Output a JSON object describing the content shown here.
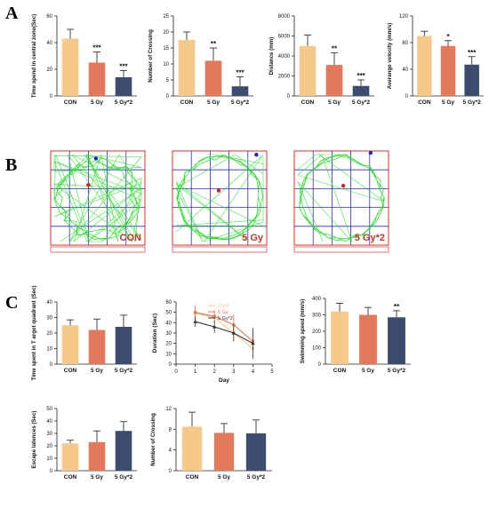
{
  "panel_labels": [
    "A",
    "B",
    "C"
  ],
  "colors": {
    "con": "#F5C98A",
    "gy5": "#E3785A",
    "gy5x2": "#3C4C6E",
    "track": "#22DD22",
    "grid": "#2B2BC8",
    "frame": "#E05050"
  },
  "chart_data": [
    {
      "type": "bar",
      "categories": [
        "CON",
        "5 Gy",
        "5 Gy*2"
      ],
      "values": [
        43,
        25,
        14
      ],
      "errors": [
        7,
        8,
        5
      ],
      "significance": [
        "",
        "***",
        "***"
      ],
      "ylabel": "Time spend in central zone(Sec)",
      "ylim": [
        0,
        60
      ],
      "yticks": [
        0,
        20,
        40,
        60
      ]
    },
    {
      "type": "bar",
      "categories": [
        "CON",
        "5 Gy",
        "5 Gy*2"
      ],
      "values": [
        17.5,
        11,
        3
      ],
      "errors": [
        2.5,
        4,
        3
      ],
      "significance": [
        "",
        "**",
        "***"
      ],
      "ylabel": "Number of Crossing",
      "ylim": [
        0,
        25
      ],
      "yticks": [
        0,
        5,
        10,
        15,
        20,
        25
      ]
    },
    {
      "type": "bar",
      "categories": [
        "CON",
        "5 Gy",
        "5 Gy*2"
      ],
      "values": [
        5000,
        3100,
        1000
      ],
      "errors": [
        1100,
        1200,
        600
      ],
      "significance": [
        "",
        "**",
        "***"
      ],
      "ylabel": "Distance (mm)",
      "ylim": [
        0,
        8000
      ],
      "yticks": [
        0,
        2000,
        4000,
        6000,
        8000
      ]
    },
    {
      "type": "bar",
      "categories": [
        "CON",
        "5 Gy",
        "5 Gy*2"
      ],
      "values": [
        90,
        75,
        47
      ],
      "errors": [
        7,
        8,
        12
      ],
      "significance": [
        "",
        "*",
        "***"
      ],
      "ylabel": "Averange velocity (mm/s)",
      "ylim": [
        0,
        120
      ],
      "yticks": [
        0,
        40,
        80,
        120
      ]
    },
    {
      "type": "bar",
      "categories": [
        "CON",
        "5 Gy",
        "5 Gy*2"
      ],
      "values": [
        25,
        22,
        24
      ],
      "errors": [
        3.5,
        7,
        7.5
      ],
      "significance": [
        "",
        "",
        ""
      ],
      "ylabel": "Time spent in T arget quadrant (Sec)",
      "ylim": [
        0,
        40
      ],
      "yticks": [
        0,
        10,
        20,
        30,
        40
      ]
    },
    {
      "type": "line",
      "x": [
        1,
        2,
        3,
        4
      ],
      "series": [
        {
          "name": "CON",
          "values": [
            49,
            45,
            30,
            15
          ]
        },
        {
          "name": "5 Gy",
          "values": [
            50,
            46,
            38,
            22
          ]
        },
        {
          "name": "5 Gy*2",
          "values": [
            41,
            36,
            30,
            20
          ]
        }
      ],
      "errors": [
        [
          6,
          5,
          8,
          4
        ],
        [
          7,
          6,
          10,
          9
        ],
        [
          5,
          6,
          8,
          15
        ]
      ],
      "xlabel": "Day",
      "ylabel": "Duration (Sec)",
      "xlim": [
        0,
        5
      ],
      "xticks": [
        0,
        1,
        2,
        3,
        4,
        5
      ],
      "ylim": [
        0,
        60
      ],
      "yticks": [
        0,
        10,
        20,
        30,
        40,
        50,
        60
      ],
      "legend": "top-center"
    },
    {
      "type": "bar",
      "categories": [
        "CON",
        "5 Gy",
        "5 Gy*2"
      ],
      "values": [
        320,
        300,
        285
      ],
      "errors": [
        50,
        45,
        40
      ],
      "significance": [
        "",
        "",
        "**"
      ],
      "ylabel": "Swimming speed (mm/s)",
      "ylim": [
        0,
        400
      ],
      "yticks": [
        0,
        100,
        200,
        300,
        400
      ]
    },
    {
      "type": "bar",
      "categories": [
        "CON",
        "5 Gy",
        "5 Gy*2"
      ],
      "values": [
        22,
        23,
        32
      ],
      "errors": [
        2.5,
        9,
        7.5
      ],
      "significance": [
        "",
        "",
        ""
      ],
      "ylabel": "Escape latences (Sec)",
      "ylim": [
        0,
        50
      ],
      "yticks": [
        0,
        10,
        20,
        30,
        40,
        50
      ]
    },
    {
      "type": "bar",
      "categories": [
        "CON",
        "5 Gy",
        "5 Gy*2"
      ],
      "values": [
        8.5,
        7.3,
        7.2
      ],
      "errors": [
        2.8,
        1.8,
        2.6
      ],
      "significance": [
        "",
        "",
        ""
      ],
      "ylabel": "Number of Crossing",
      "ylim": [
        0,
        12
      ],
      "yticks": [
        0,
        4,
        8,
        12
      ]
    }
  ],
  "tracks": [
    {
      "label": "CON",
      "blue_dot": [
        0.48,
        0.08
      ],
      "red_dot": [
        0.4,
        0.36
      ]
    },
    {
      "label": "5 Gy",
      "blue_dot": [
        0.89,
        0.04
      ],
      "red_dot": [
        0.49,
        0.42
      ]
    },
    {
      "label": "5 Gy*2",
      "blue_dot": [
        0.81,
        0.02
      ],
      "red_dot": [
        0.52,
        0.37
      ]
    }
  ]
}
